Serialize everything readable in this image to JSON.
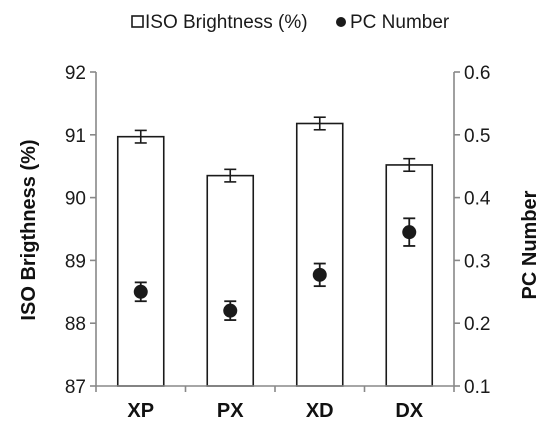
{
  "chart_data": {
    "type": "bar",
    "categories": [
      "XP",
      "PX",
      "XD",
      "DX"
    ],
    "series": [
      {
        "name": "ISO Brightness (%)",
        "kind": "bar",
        "axis": "left",
        "values": [
          90.97,
          90.35,
          91.18,
          90.52
        ],
        "errors": [
          0.1,
          0.1,
          0.1,
          0.1
        ]
      },
      {
        "name": "PC Number",
        "kind": "point",
        "axis": "right",
        "values": [
          0.25,
          0.22,
          0.277,
          0.345
        ],
        "errors": [
          0.015,
          0.015,
          0.018,
          0.022
        ]
      }
    ],
    "ylabel": "ISO Brigthness (%)",
    "ylabel_right": "PC Number",
    "ylim": [
      87,
      92
    ],
    "ylim_right": [
      0.1,
      0.6
    ],
    "yticks": [
      "87",
      "88",
      "89",
      "90",
      "91",
      "92"
    ],
    "yticks_right": [
      "0.1",
      "0.2",
      "0.3",
      "0.4",
      "0.5",
      "0.6"
    ],
    "legend_position": "top",
    "grid": false,
    "colors": {
      "bar_fill": "#ffffff",
      "bar_stroke": "#1a1a1a",
      "point": "#1a1a1a",
      "axis": "#888888"
    }
  }
}
